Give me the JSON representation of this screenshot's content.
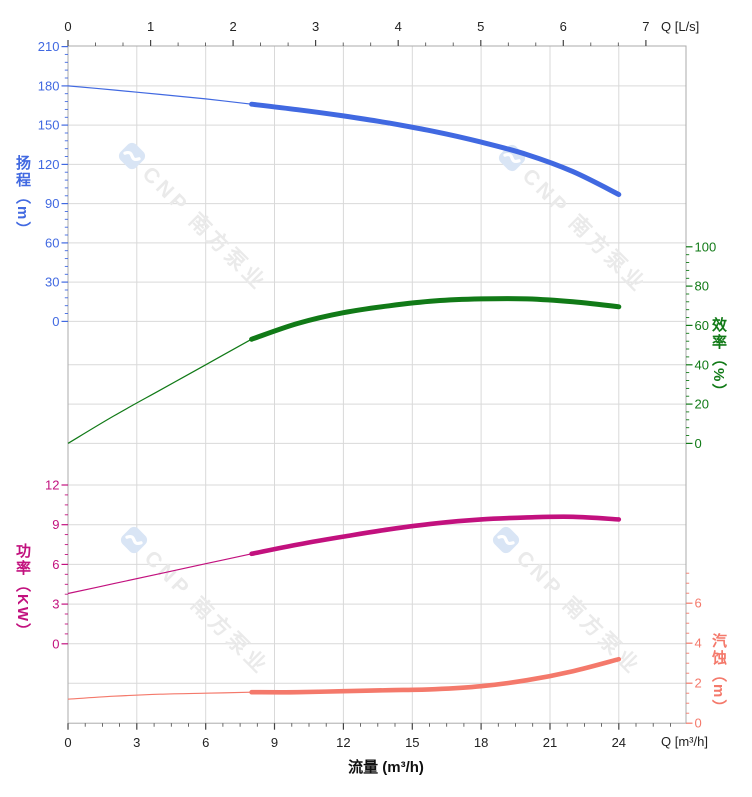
{
  "watermark": {
    "text": "CNP 南方泵业"
  },
  "axis_titles": {
    "head": "扬程（m）",
    "eff": "效率（%）",
    "power": "功率（KW）",
    "npsh": "汽蚀（m）",
    "flow": "流量 (m³/h)",
    "q_top": "Q [L/s]",
    "q_bottom": "Q [m³/h]"
  },
  "colors": {
    "head": "#4169e1",
    "eff": "#117a17",
    "power": "#c2117e",
    "npsh": "#f4796b",
    "grid": "#d9d9d9",
    "border": "#ababab",
    "x_tick": "#444444",
    "x_label": "#222222",
    "watermark_text": "#eaeaea",
    "watermark_logo": "#d9e5f5"
  },
  "chart_data": {
    "type": "line",
    "xlabel": "流量 (m³/h)",
    "x_axis_top": {
      "unit": "Q [L/s]",
      "ticks": [
        0,
        1,
        2,
        3,
        4,
        5,
        6,
        7
      ],
      "minor_divisions": 3
    },
    "x_axis_bottom": {
      "unit": "Q [m³/h]",
      "ticks": [
        0,
        3,
        6,
        9,
        12,
        15,
        18,
        21,
        24
      ],
      "minor_step": 0.75,
      "minor_max": 26.3
    },
    "x_m3h": [
      0,
      2,
      4,
      6,
      8,
      10,
      12,
      14,
      16,
      18,
      20,
      22,
      24
    ],
    "highlight_range_m3h": [
      8,
      24
    ],
    "panels": [
      {
        "series": [
          {
            "name": "head",
            "axis": "head",
            "color": "#4169e1",
            "values": [
              180,
              176.8,
              173.5,
              170,
              166,
              161.8,
              157,
              151.5,
              145,
              137,
              127.5,
              114.5,
              97
            ]
          },
          {
            "name": "efficiency",
            "axis": "eff",
            "color": "#117a17",
            "values": [
              0,
              14,
              27,
              40,
              53,
              61,
              66.5,
              70,
              72.5,
              73.5,
              73.5,
              72,
              69.5
            ]
          }
        ],
        "y_axes": {
          "head": {
            "label": "扬程（m）",
            "side": "left",
            "min": 0,
            "max": 210,
            "major_ticks": [
              0,
              30,
              60,
              90,
              120,
              150,
              180,
              210
            ],
            "minor_step": 6,
            "minor_max": 210,
            "grid_ticks": [
              0,
              30,
              60,
              90,
              120,
              150,
              180,
              210
            ]
          },
          "eff": {
            "label": "效率（%）",
            "side": "right",
            "min": 0,
            "max": 100,
            "major_ticks": [
              0,
              20,
              40,
              60,
              80,
              100
            ],
            "minor_step": 4,
            "minor_max": 100,
            "grid_ticks": [
              0,
              20,
              40
            ]
          }
        }
      },
      {
        "series": [
          {
            "name": "power",
            "axis": "power",
            "color": "#c2117e",
            "values": [
              3.8,
              4.55,
              5.3,
              6.05,
              6.8,
              7.5,
              8.1,
              8.65,
              9.1,
              9.4,
              9.55,
              9.6,
              9.4
            ]
          },
          {
            "name": "npsh",
            "axis": "npsh",
            "color": "#f4796b",
            "values": [
              1.2,
              1.35,
              1.45,
              1.5,
              1.55,
              1.55,
              1.6,
              1.65,
              1.7,
              1.85,
              2.15,
              2.6,
              3.2
            ]
          }
        ],
        "y_axes": {
          "power": {
            "label": "功率（KW）",
            "side": "left",
            "min": 0,
            "max": 12,
            "major_ticks": [
              0,
              3,
              6,
              9,
              12
            ],
            "minor_step": 0.75,
            "minor_max": 12,
            "grid_ticks": [
              0,
              3,
              6,
              9,
              12
            ]
          },
          "npsh": {
            "label": "汽蚀（m）",
            "side": "right",
            "min": 0,
            "max": 6,
            "major_ticks": [
              0,
              2,
              4,
              6
            ],
            "minor_step": 0.5,
            "minor_max": 7.5,
            "grid_ticks": [
              2
            ]
          }
        }
      }
    ]
  }
}
